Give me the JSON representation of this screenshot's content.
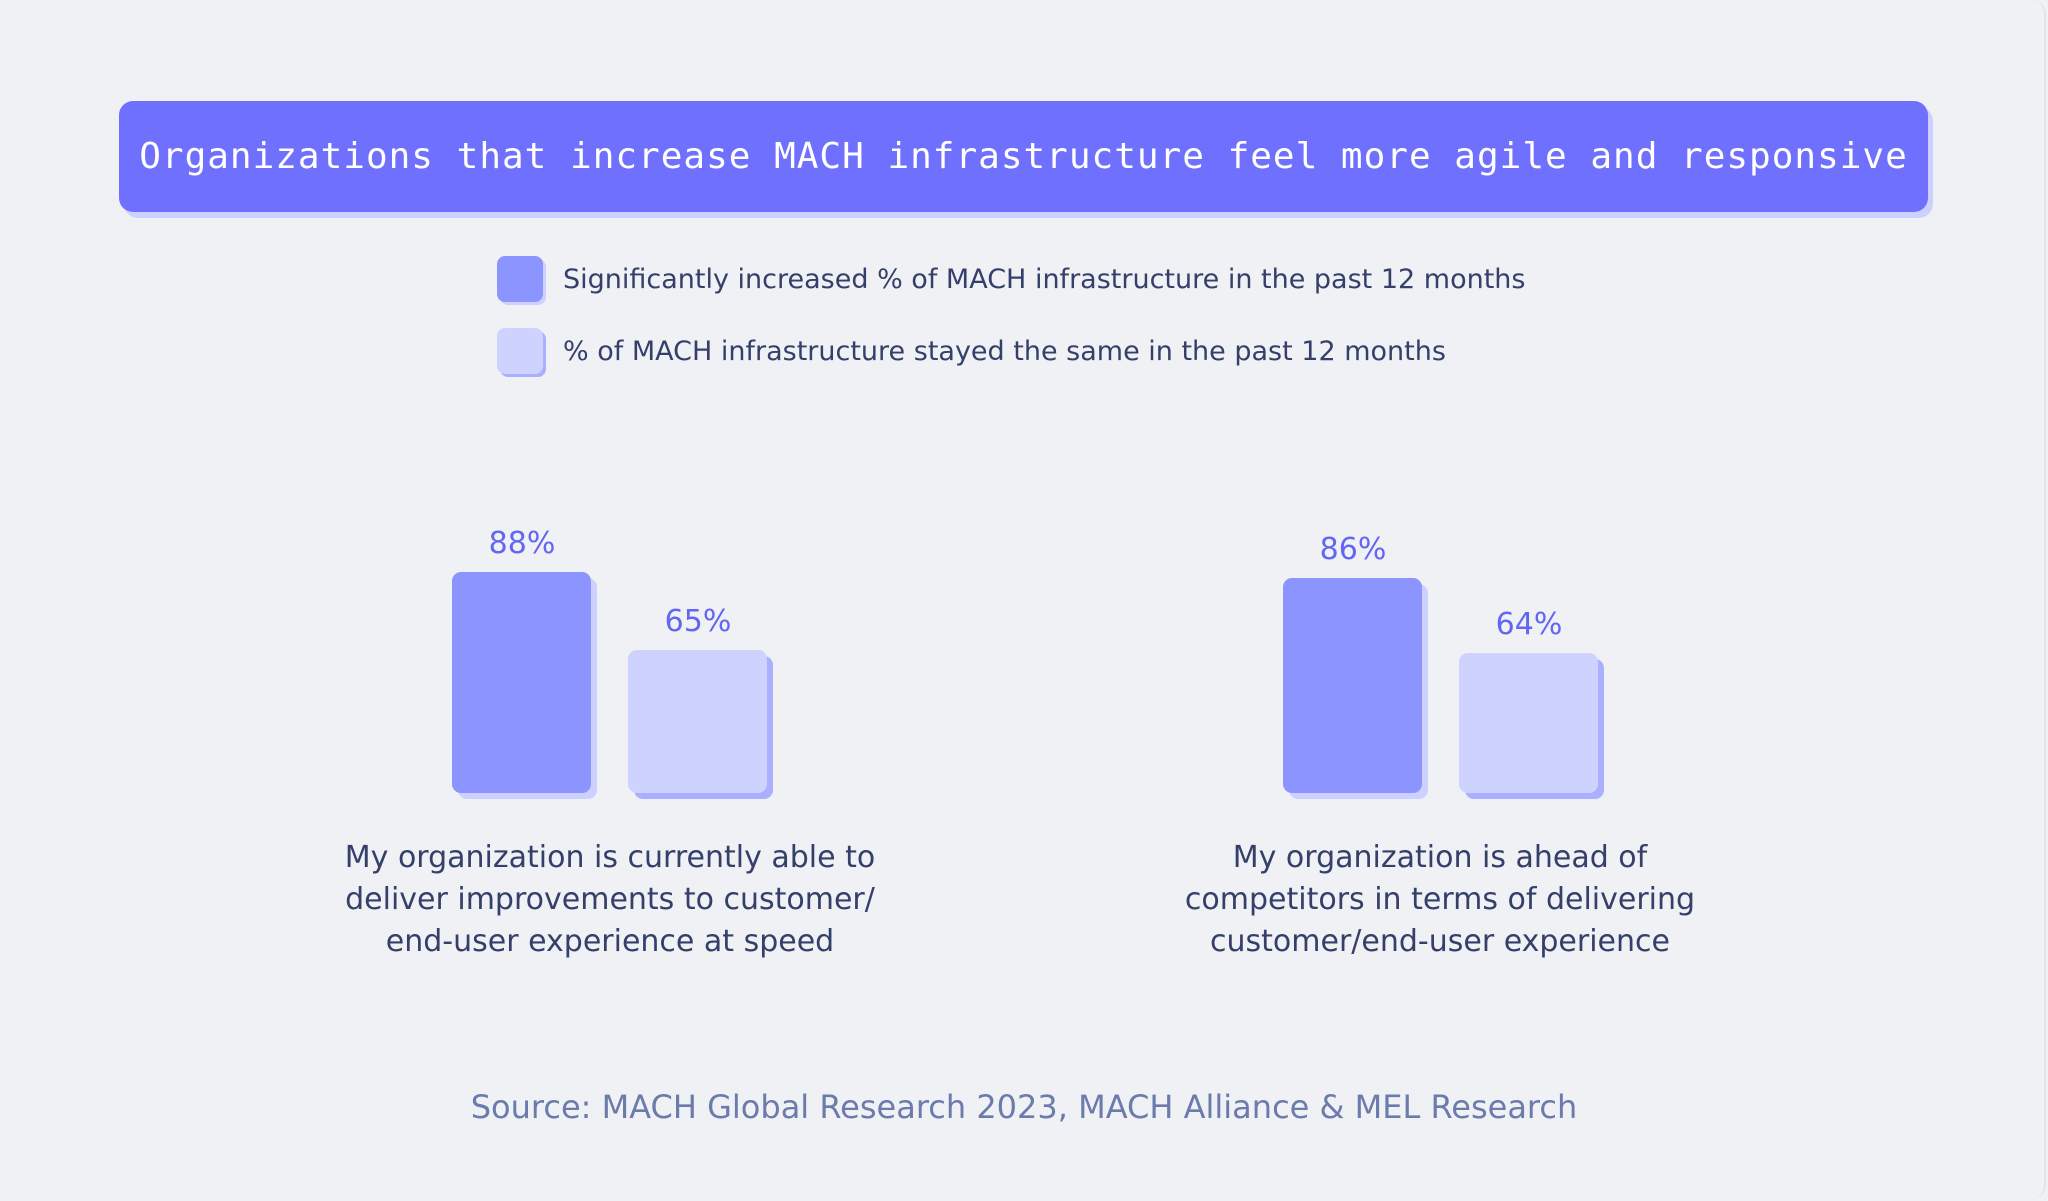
{
  "chart_data": {
    "type": "bar",
    "title": "Organizations that increase MACH infrastructure feel more agile and responsive",
    "categories": [
      [
        "My organization is currently able to",
        "deliver improvements to customer/",
        "end-user experience at speed"
      ],
      [
        "My organization is ahead of",
        "competitors in terms of delivering",
        "customer/end-user experience"
      ]
    ],
    "series": [
      {
        "name": "Significantly increased % of MACH infrastructure in the past 12 months",
        "values": [
          88,
          86
        ],
        "labels": [
          "88%",
          "86%"
        ],
        "color": "#8c94ff",
        "shadow": "#cdd1ff"
      },
      {
        "name": "% of MACH infrastructure stayed the same in the past 12 months",
        "values": [
          65,
          64
        ],
        "labels": [
          "65%",
          "64%"
        ],
        "color": "#cdd2ff",
        "shadow": "#aab0ff"
      }
    ],
    "legend": "top",
    "grid": false,
    "source": "Source: MACH Global Research 2023, MACH Alliance & MEL Research"
  }
}
